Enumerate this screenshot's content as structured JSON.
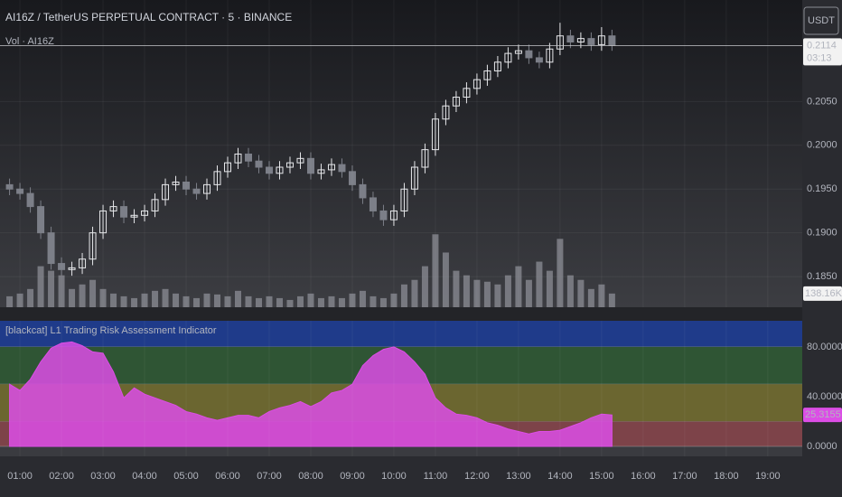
{
  "toolbar": {
    "currency": "USDT"
  },
  "chart_data": [
    {
      "type": "candlestick",
      "title": "AI16Z / TetherUS PERPETUAL CONTRACT · 5 · BINANCE",
      "subtitle": "Vol · AI16Z",
      "x": [
        0.75,
        1,
        1.25,
        1.5,
        1.75,
        2,
        2.25,
        2.5,
        2.75,
        3,
        3.25,
        3.5,
        3.75,
        4,
        4.25,
        4.5,
        4.75,
        5,
        5.25,
        5.5,
        5.75,
        6,
        6.25,
        6.5,
        6.75,
        7,
        7.25,
        7.5,
        7.75,
        8,
        8.25,
        8.5,
        8.75,
        9,
        9.25,
        9.5,
        9.75,
        10,
        10.25,
        10.5,
        10.75,
        11,
        11.25,
        11.5,
        11.75,
        12,
        12.25,
        12.5,
        12.75,
        13,
        13.25,
        13.5,
        13.75,
        14,
        14.25,
        14.5,
        14.75,
        15,
        15.25
      ],
      "open": [
        0.1955,
        0.195,
        0.1945,
        0.193,
        0.19,
        0.1865,
        0.1858,
        0.186,
        0.187,
        0.19,
        0.1925,
        0.193,
        0.1918,
        0.192,
        0.1925,
        0.1938,
        0.1955,
        0.1958,
        0.195,
        0.1945,
        0.1955,
        0.197,
        0.198,
        0.199,
        0.1982,
        0.1975,
        0.1968,
        0.1975,
        0.198,
        0.1985,
        0.1968,
        0.1972,
        0.1978,
        0.197,
        0.1955,
        0.194,
        0.1925,
        0.1915,
        0.1925,
        0.195,
        0.1975,
        0.1995,
        0.203,
        0.2045,
        0.2055,
        0.2065,
        0.2075,
        0.2085,
        0.2095,
        0.2105,
        0.2108,
        0.21,
        0.2095,
        0.211,
        0.2125,
        0.2118,
        0.2122,
        0.2115,
        0.2125
      ],
      "high": [
        0.1962,
        0.1957,
        0.1952,
        0.1937,
        0.1907,
        0.1872,
        0.1867,
        0.1877,
        0.1907,
        0.1932,
        0.1937,
        0.1937,
        0.1927,
        0.1932,
        0.1945,
        0.1962,
        0.1965,
        0.1965,
        0.1957,
        0.1962,
        0.1977,
        0.1987,
        0.1997,
        0.1997,
        0.1989,
        0.1982,
        0.1982,
        0.1987,
        0.1992,
        0.1992,
        0.1979,
        0.1985,
        0.1985,
        0.1977,
        0.1962,
        0.1947,
        0.1932,
        0.1932,
        0.1957,
        0.1982,
        0.2002,
        0.2037,
        0.2052,
        0.2062,
        0.2072,
        0.2082,
        0.2092,
        0.2102,
        0.2112,
        0.2115,
        0.2115,
        0.2107,
        0.2117,
        0.214,
        0.2132,
        0.2129,
        0.2129,
        0.2135,
        0.2132
      ],
      "low": [
        0.1943,
        0.1938,
        0.1923,
        0.1893,
        0.1858,
        0.1851,
        0.1851,
        0.1853,
        0.1863,
        0.1893,
        0.1918,
        0.1911,
        0.1911,
        0.1913,
        0.1918,
        0.1931,
        0.1948,
        0.1943,
        0.1938,
        0.1938,
        0.1948,
        0.1963,
        0.1973,
        0.1975,
        0.1968,
        0.1961,
        0.1961,
        0.1968,
        0.1973,
        0.1961,
        0.1961,
        0.1965,
        0.1963,
        0.1948,
        0.1933,
        0.1918,
        0.1908,
        0.1908,
        0.1918,
        0.1943,
        0.1968,
        0.1988,
        0.2023,
        0.2038,
        0.2048,
        0.2058,
        0.2068,
        0.2078,
        0.2088,
        0.2098,
        0.2093,
        0.2088,
        0.2088,
        0.2103,
        0.2111,
        0.2111,
        0.2108,
        0.2108,
        0.2108
      ],
      "close": [
        0.195,
        0.1945,
        0.193,
        0.19,
        0.1865,
        0.1858,
        0.186,
        0.187,
        0.19,
        0.1925,
        0.193,
        0.1918,
        0.192,
        0.1925,
        0.1938,
        0.1955,
        0.1958,
        0.195,
        0.1945,
        0.1955,
        0.197,
        0.198,
        0.199,
        0.1982,
        0.1975,
        0.1968,
        0.1975,
        0.198,
        0.1985,
        0.1968,
        0.1972,
        0.1978,
        0.197,
        0.1955,
        0.194,
        0.1925,
        0.1915,
        0.1925,
        0.195,
        0.1975,
        0.1995,
        0.203,
        0.2045,
        0.2055,
        0.2065,
        0.2075,
        0.2085,
        0.2095,
        0.2105,
        0.2108,
        0.21,
        0.2095,
        0.211,
        0.2125,
        0.2118,
        0.2122,
        0.2115,
        0.2125,
        0.2114
      ],
      "close_labels": [
        null,
        null,
        null,
        null,
        null,
        null,
        null,
        null,
        null,
        null,
        null,
        null,
        null,
        null,
        null,
        null,
        null,
        null,
        null,
        null,
        null,
        null,
        null,
        null,
        null,
        null,
        null,
        null,
        null,
        null,
        null,
        null,
        null,
        null,
        null,
        null,
        null,
        null,
        null,
        null,
        null,
        null,
        null,
        null,
        null,
        null,
        null,
        null,
        null,
        null,
        null,
        null,
        null,
        null,
        null,
        null,
        null,
        null,
        "0.2114"
      ],
      "countdown": "03:13",
      "up_color": "#e6e7ea",
      "down_color": "#7c7f88",
      "volume": [
        110400,
        138000,
        184000,
        414000,
        368000,
        322000,
        184000,
        230000,
        276000,
        184000,
        138000,
        110400,
        92000,
        138000,
        165600,
        184000,
        138000,
        110400,
        92000,
        138000,
        128800,
        110400,
        165600,
        110400,
        92000,
        110400,
        92000,
        73600,
        110400,
        138000,
        92000,
        110400,
        92000,
        138000,
        165600,
        110400,
        92000,
        138000,
        230000,
        276000,
        414000,
        736000,
        552000,
        368000,
        322000,
        276000,
        257600,
        230000,
        322000,
        414000,
        276000,
        460000,
        368000,
        690000,
        322000,
        276000,
        184000,
        230000,
        138160
      ],
      "volume_labels": [
        null,
        null,
        null,
        null,
        null,
        null,
        null,
        null,
        null,
        null,
        null,
        null,
        null,
        null,
        null,
        null,
        null,
        null,
        null,
        null,
        null,
        null,
        null,
        null,
        null,
        null,
        null,
        null,
        null,
        null,
        null,
        null,
        null,
        null,
        null,
        null,
        null,
        null,
        null,
        null,
        null,
        null,
        null,
        null,
        null,
        null,
        null,
        null,
        null,
        null,
        null,
        null,
        null,
        null,
        null,
        null,
        null,
        null,
        "138.16K"
      ],
      "volume_ylim": [
        0,
        3100000
      ],
      "volume_color": "#8c8e95",
      "xlim": [
        0.52,
        19.83
      ],
      "ylim": [
        0.1815,
        0.2166
      ],
      "yticks": [
        {
          "value": 0.185,
          "label": "0.1850"
        },
        {
          "value": 0.19,
          "label": "0.1900"
        },
        {
          "value": 0.195,
          "label": "0.1950"
        },
        {
          "value": 0.2,
          "label": "0.2000"
        },
        {
          "value": 0.205,
          "label": "0.2050"
        }
      ],
      "grid": true
    },
    {
      "type": "area",
      "title": "[blackcat] L1 Trading Risk Assessment Indicator",
      "series": [
        {
          "color": "#dc4ee6",
          "values": [
            50,
            45,
            54,
            68,
            79,
            83,
            84,
            81,
            76,
            75,
            60,
            39,
            47,
            42,
            39,
            36,
            33,
            28,
            26,
            23,
            21,
            23,
            25,
            25,
            23,
            28,
            31,
            33,
            36,
            32,
            36,
            43,
            45,
            50,
            65,
            73,
            78,
            80,
            76,
            68,
            58,
            39,
            31,
            26,
            25,
            23,
            19,
            17,
            14,
            12,
            10,
            12,
            12,
            13,
            16,
            19,
            23,
            26,
            25.3155
          ],
          "value_labels": [
            null,
            null,
            null,
            null,
            null,
            null,
            null,
            null,
            null,
            null,
            null,
            null,
            null,
            null,
            null,
            null,
            null,
            null,
            null,
            null,
            null,
            null,
            null,
            null,
            null,
            null,
            null,
            null,
            null,
            null,
            null,
            null,
            null,
            null,
            null,
            null,
            null,
            null,
            null,
            null,
            null,
            null,
            null,
            null,
            null,
            null,
            null,
            null,
            null,
            null,
            null,
            null,
            null,
            null,
            null,
            null,
            null,
            null,
            "25.3155"
          ]
        }
      ],
      "zones": [
        {
          "from": 80,
          "to": 101,
          "color": "#1f3b8a"
        },
        {
          "from": 50,
          "to": 80,
          "color": "#2f5534"
        },
        {
          "from": 20,
          "to": 50,
          "color": "#6b6630"
        },
        {
          "from": 0,
          "to": 20,
          "color": "#7d4349"
        }
      ],
      "xlim": [
        0.52,
        19.83
      ],
      "ylim": [
        -8,
        101
      ],
      "yticks": [
        {
          "value": 0,
          "label": "0.0000"
        },
        {
          "value": 40,
          "label": "40.0000"
        },
        {
          "value": 80,
          "label": "80.0000"
        }
      ],
      "xticks": [
        {
          "value": 1,
          "label": "01:00"
        },
        {
          "value": 2,
          "label": "02:00"
        },
        {
          "value": 3,
          "label": "03:00"
        },
        {
          "value": 4,
          "label": "04:00"
        },
        {
          "value": 5,
          "label": "05:00"
        },
        {
          "value": 6,
          "label": "06:00"
        },
        {
          "value": 7,
          "label": "07:00"
        },
        {
          "value": 8,
          "label": "08:00"
        },
        {
          "value": 9,
          "label": "09:00"
        },
        {
          "value": 10,
          "label": "10:00"
        },
        {
          "value": 11,
          "label": "11:00"
        },
        {
          "value": 12,
          "label": "12:00"
        },
        {
          "value": 13,
          "label": "13:00"
        },
        {
          "value": 14,
          "label": "14:00"
        },
        {
          "value": 15,
          "label": "15:00"
        },
        {
          "value": 16,
          "label": "16:00"
        },
        {
          "value": 17,
          "label": "17:00"
        },
        {
          "value": 18,
          "label": "18:00"
        },
        {
          "value": 19,
          "label": "19:00"
        }
      ],
      "grid": true
    }
  ]
}
